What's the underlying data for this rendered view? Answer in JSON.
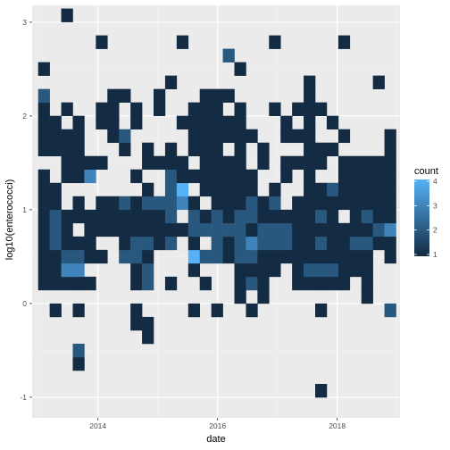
{
  "chart_data": {
    "type": "heatmap",
    "xlabel": "date",
    "ylabel": "log10(enterococci)",
    "x_ticks": [
      "2014",
      "2016",
      "2018"
    ],
    "x_tick_values": [
      2014,
      2016,
      2018
    ],
    "x_range": [
      2012.9,
      2019.05
    ],
    "y_ticks": [
      "-1",
      "0",
      "1",
      "2",
      "3"
    ],
    "y_tick_values": [
      -1,
      0,
      1,
      2,
      3
    ],
    "y_range": [
      -1.22,
      3.18
    ],
    "bin_width_years": 0.193,
    "bin_height": 0.143,
    "x_bin_origin": 2013.0,
    "y_bin_origin": 0.0,
    "grid": true,
    "legend": {
      "title": "count",
      "position": "right",
      "labels": [
        "1",
        "2",
        "3",
        "4"
      ],
      "values": [
        1,
        2,
        3,
        4
      ],
      "color_low": "#132b43",
      "color_high": "#56b1f7"
    },
    "bins": [
      [
        0,
        1,
        1
      ],
      [
        0,
        2,
        1
      ],
      [
        0,
        3,
        1
      ],
      [
        0,
        4,
        1
      ],
      [
        0,
        5,
        1
      ],
      [
        0,
        6,
        1
      ],
      [
        0,
        7,
        1
      ],
      [
        0,
        8,
        1
      ],
      [
        0,
        9,
        1
      ],
      [
        0,
        11,
        1
      ],
      [
        0,
        12,
        1
      ],
      [
        0,
        13,
        1
      ],
      [
        0,
        14,
        1
      ],
      [
        0,
        15,
        2
      ],
      [
        0,
        17,
        1
      ],
      [
        1,
        -1,
        1
      ],
      [
        1,
        1,
        1
      ],
      [
        1,
        2,
        1
      ],
      [
        1,
        3,
        1
      ],
      [
        1,
        4,
        2
      ],
      [
        1,
        5,
        2
      ],
      [
        1,
        6,
        2
      ],
      [
        1,
        7,
        1
      ],
      [
        1,
        8,
        1
      ],
      [
        1,
        11,
        1
      ],
      [
        1,
        12,
        1
      ],
      [
        1,
        13,
        1
      ],
      [
        2,
        1,
        1
      ],
      [
        2,
        2,
        3
      ],
      [
        2,
        3,
        2
      ],
      [
        2,
        4,
        1
      ],
      [
        2,
        5,
        1
      ],
      [
        2,
        6,
        1
      ],
      [
        2,
        9,
        1
      ],
      [
        2,
        10,
        1
      ],
      [
        2,
        11,
        1
      ],
      [
        2,
        12,
        1
      ],
      [
        2,
        14,
        1
      ],
      [
        2,
        21,
        1
      ],
      [
        3,
        -5,
        1
      ],
      [
        3,
        -4,
        2
      ],
      [
        3,
        -1,
        1
      ],
      [
        3,
        1,
        1
      ],
      [
        3,
        2,
        3
      ],
      [
        3,
        3,
        2
      ],
      [
        3,
        4,
        1
      ],
      [
        3,
        6,
        1
      ],
      [
        3,
        7,
        1
      ],
      [
        3,
        9,
        1
      ],
      [
        3,
        10,
        1
      ],
      [
        3,
        11,
        1
      ],
      [
        3,
        12,
        1
      ],
      [
        3,
        13,
        1
      ],
      [
        4,
        1,
        1
      ],
      [
        4,
        3,
        1
      ],
      [
        4,
        4,
        1
      ],
      [
        4,
        5,
        1
      ],
      [
        4,
        6,
        1
      ],
      [
        4,
        9,
        3
      ],
      [
        4,
        10,
        1
      ],
      [
        5,
        3,
        1
      ],
      [
        5,
        5,
        1
      ],
      [
        5,
        6,
        1
      ],
      [
        5,
        7,
        1
      ],
      [
        5,
        10,
        1
      ],
      [
        5,
        13,
        1
      ],
      [
        5,
        14,
        1
      ],
      [
        5,
        19,
        1
      ],
      [
        6,
        5,
        1
      ],
      [
        6,
        6,
        1
      ],
      [
        6,
        7,
        1
      ],
      [
        6,
        12,
        1
      ],
      [
        6,
        13,
        1
      ],
      [
        6,
        14,
        1
      ],
      [
        6,
        15,
        1
      ],
      [
        7,
        3,
        2
      ],
      [
        7,
        4,
        1
      ],
      [
        7,
        5,
        1
      ],
      [
        7,
        6,
        1
      ],
      [
        7,
        7,
        2
      ],
      [
        7,
        11,
        1
      ],
      [
        7,
        12,
        2
      ],
      [
        7,
        15,
        1
      ],
      [
        8,
        -2,
        1
      ],
      [
        8,
        -1,
        1
      ],
      [
        8,
        1,
        1
      ],
      [
        8,
        2,
        1
      ],
      [
        8,
        3,
        2
      ],
      [
        8,
        4,
        2
      ],
      [
        8,
        5,
        1
      ],
      [
        8,
        6,
        1
      ],
      [
        8,
        7,
        1
      ],
      [
        8,
        9,
        1
      ],
      [
        8,
        13,
        1
      ],
      [
        8,
        14,
        1
      ],
      [
        9,
        -3,
        1
      ],
      [
        9,
        -2,
        1
      ],
      [
        9,
        1,
        2
      ],
      [
        9,
        2,
        2
      ],
      [
        9,
        3,
        1
      ],
      [
        9,
        4,
        2
      ],
      [
        9,
        5,
        1
      ],
      [
        9,
        6,
        1
      ],
      [
        9,
        7,
        2
      ],
      [
        9,
        8,
        1
      ],
      [
        9,
        10,
        1
      ],
      [
        9,
        11,
        1
      ],
      [
        10,
        4,
        1
      ],
      [
        10,
        5,
        1
      ],
      [
        10,
        6,
        1
      ],
      [
        10,
        7,
        2
      ],
      [
        10,
        10,
        1
      ],
      [
        10,
        14,
        1
      ],
      [
        10,
        15,
        1
      ],
      [
        11,
        1,
        1
      ],
      [
        11,
        4,
        2
      ],
      [
        11,
        5,
        1
      ],
      [
        11,
        6,
        2
      ],
      [
        11,
        7,
        2
      ],
      [
        11,
        8,
        2
      ],
      [
        11,
        9,
        2
      ],
      [
        11,
        10,
        1
      ],
      [
        11,
        11,
        1
      ],
      [
        11,
        16,
        1
      ],
      [
        12,
        5,
        1
      ],
      [
        12,
        7,
        3
      ],
      [
        12,
        8,
        4
      ],
      [
        12,
        9,
        1
      ],
      [
        12,
        10,
        1
      ],
      [
        12,
        13,
        1
      ],
      [
        12,
        19,
        1
      ],
      [
        13,
        -1,
        1
      ],
      [
        13,
        2,
        1
      ],
      [
        13,
        3,
        4
      ],
      [
        13,
        4,
        1
      ],
      [
        13,
        5,
        2
      ],
      [
        13,
        6,
        2
      ],
      [
        13,
        7,
        1
      ],
      [
        13,
        9,
        1
      ],
      [
        13,
        11,
        1
      ],
      [
        13,
        12,
        1
      ],
      [
        13,
        13,
        1
      ],
      [
        13,
        14,
        1
      ],
      [
        14,
        1,
        1
      ],
      [
        14,
        3,
        2
      ],
      [
        14,
        5,
        2
      ],
      [
        14,
        6,
        1
      ],
      [
        14,
        8,
        1
      ],
      [
        14,
        9,
        1
      ],
      [
        14,
        10,
        1
      ],
      [
        14,
        11,
        1
      ],
      [
        14,
        12,
        1
      ],
      [
        14,
        13,
        1
      ],
      [
        14,
        14,
        1
      ],
      [
        14,
        15,
        1
      ],
      [
        15,
        -1,
        1
      ],
      [
        15,
        3,
        2
      ],
      [
        15,
        4,
        2
      ],
      [
        15,
        5,
        2
      ],
      [
        15,
        6,
        2
      ],
      [
        15,
        7,
        1
      ],
      [
        15,
        8,
        1
      ],
      [
        15,
        9,
        1
      ],
      [
        15,
        10,
        1
      ],
      [
        15,
        11,
        1
      ],
      [
        15,
        12,
        1
      ],
      [
        15,
        13,
        1
      ],
      [
        15,
        14,
        1
      ],
      [
        15,
        15,
        1
      ],
      [
        16,
        3,
        1
      ],
      [
        16,
        4,
        1
      ],
      [
        16,
        5,
        2
      ],
      [
        16,
        6,
        1
      ],
      [
        16,
        7,
        1
      ],
      [
        16,
        8,
        1
      ],
      [
        16,
        9,
        1
      ],
      [
        16,
        10,
        1
      ],
      [
        16,
        12,
        1
      ],
      [
        16,
        13,
        1
      ],
      [
        16,
        15,
        1
      ],
      [
        16,
        18,
        2
      ],
      [
        17,
        0,
        1
      ],
      [
        17,
        1,
        1
      ],
      [
        17,
        2,
        1
      ],
      [
        17,
        3,
        2
      ],
      [
        17,
        4,
        2
      ],
      [
        17,
        5,
        2
      ],
      [
        17,
        6,
        2
      ],
      [
        17,
        7,
        1
      ],
      [
        17,
        8,
        1
      ],
      [
        17,
        9,
        1
      ],
      [
        17,
        10,
        1
      ],
      [
        17,
        11,
        1
      ],
      [
        17,
        12,
        1
      ],
      [
        17,
        13,
        1
      ],
      [
        17,
        14,
        1
      ],
      [
        17,
        17,
        1
      ],
      [
        18,
        -1,
        1
      ],
      [
        18,
        1,
        2
      ],
      [
        18,
        2,
        1
      ],
      [
        18,
        3,
        2
      ],
      [
        18,
        4,
        3
      ],
      [
        18,
        5,
        1
      ],
      [
        18,
        6,
        2
      ],
      [
        18,
        7,
        2
      ],
      [
        18,
        8,
        1
      ],
      [
        18,
        9,
        1
      ],
      [
        18,
        12,
        1
      ],
      [
        19,
        0,
        1
      ],
      [
        19,
        1,
        1
      ],
      [
        19,
        2,
        1
      ],
      [
        19,
        3,
        1
      ],
      [
        19,
        4,
        2
      ],
      [
        19,
        5,
        2
      ],
      [
        19,
        6,
        1
      ],
      [
        19,
        7,
        1
      ],
      [
        19,
        10,
        1
      ],
      [
        19,
        11,
        1
      ],
      [
        20,
        2,
        1
      ],
      [
        20,
        3,
        1
      ],
      [
        20,
        4,
        2
      ],
      [
        20,
        5,
        2
      ],
      [
        20,
        6,
        1
      ],
      [
        20,
        7,
        2
      ],
      [
        20,
        8,
        1
      ],
      [
        20,
        14,
        1
      ],
      [
        20,
        19,
        1
      ],
      [
        21,
        3,
        1
      ],
      [
        21,
        4,
        2
      ],
      [
        21,
        5,
        2
      ],
      [
        21,
        6,
        1
      ],
      [
        21,
        9,
        1
      ],
      [
        21,
        10,
        1
      ],
      [
        21,
        12,
        1
      ],
      [
        21,
        13,
        1
      ],
      [
        22,
        1,
        1
      ],
      [
        22,
        2,
        1
      ],
      [
        22,
        3,
        1
      ],
      [
        22,
        4,
        1
      ],
      [
        22,
        5,
        1
      ],
      [
        22,
        6,
        1
      ],
      [
        22,
        7,
        1
      ],
      [
        22,
        10,
        1
      ],
      [
        22,
        12,
        1
      ],
      [
        22,
        14,
        1
      ],
      [
        23,
        1,
        1
      ],
      [
        23,
        2,
        2
      ],
      [
        23,
        3,
        1
      ],
      [
        23,
        4,
        1
      ],
      [
        23,
        5,
        1
      ],
      [
        23,
        6,
        1
      ],
      [
        23,
        7,
        1
      ],
      [
        23,
        8,
        1
      ],
      [
        23,
        9,
        1
      ],
      [
        23,
        10,
        1
      ],
      [
        23,
        11,
        1
      ],
      [
        23,
        12,
        1
      ],
      [
        23,
        13,
        1
      ],
      [
        23,
        14,
        1
      ],
      [
        23,
        15,
        1
      ],
      [
        23,
        16,
        1
      ],
      [
        24,
        -1,
        1
      ],
      [
        24,
        -7,
        1
      ],
      [
        24,
        1,
        1
      ],
      [
        24,
        2,
        2
      ],
      [
        24,
        3,
        1
      ],
      [
        24,
        4,
        2
      ],
      [
        24,
        5,
        1
      ],
      [
        24,
        6,
        2
      ],
      [
        24,
        7,
        1
      ],
      [
        24,
        8,
        1
      ],
      [
        24,
        10,
        1
      ],
      [
        24,
        11,
        1
      ],
      [
        24,
        14,
        1
      ],
      [
        25,
        1,
        1
      ],
      [
        25,
        2,
        2
      ],
      [
        25,
        3,
        1
      ],
      [
        25,
        4,
        1
      ],
      [
        25,
        5,
        1
      ],
      [
        25,
        6,
        1
      ],
      [
        25,
        7,
        1
      ],
      [
        25,
        8,
        2
      ],
      [
        25,
        11,
        1
      ],
      [
        25,
        13,
        1
      ],
      [
        26,
        1,
        1
      ],
      [
        26,
        2,
        1
      ],
      [
        26,
        3,
        1
      ],
      [
        26,
        4,
        1
      ],
      [
        26,
        5,
        1
      ],
      [
        26,
        7,
        1
      ],
      [
        26,
        8,
        1
      ],
      [
        26,
        9,
        1
      ],
      [
        26,
        10,
        1
      ],
      [
        26,
        12,
        1
      ],
      [
        26,
        19,
        1
      ],
      [
        27,
        2,
        1
      ],
      [
        27,
        3,
        1
      ],
      [
        27,
        4,
        2
      ],
      [
        27,
        5,
        1
      ],
      [
        27,
        6,
        1
      ],
      [
        27,
        7,
        1
      ],
      [
        27,
        8,
        1
      ],
      [
        27,
        9,
        1
      ],
      [
        27,
        10,
        1
      ],
      [
        28,
        0,
        1
      ],
      [
        28,
        1,
        1
      ],
      [
        28,
        2,
        1
      ],
      [
        28,
        3,
        1
      ],
      [
        28,
        4,
        2
      ],
      [
        28,
        5,
        1
      ],
      [
        28,
        6,
        2
      ],
      [
        28,
        7,
        1
      ],
      [
        28,
        8,
        1
      ],
      [
        28,
        9,
        1
      ],
      [
        28,
        10,
        1
      ],
      [
        29,
        4,
        1
      ],
      [
        29,
        5,
        2
      ],
      [
        29,
        6,
        1
      ],
      [
        29,
        7,
        1
      ],
      [
        29,
        8,
        1
      ],
      [
        29,
        9,
        1
      ],
      [
        29,
        10,
        1
      ],
      [
        29,
        16,
        1
      ],
      [
        30,
        -1,
        2
      ],
      [
        30,
        3,
        1
      ],
      [
        30,
        4,
        1
      ],
      [
        30,
        5,
        3
      ],
      [
        30,
        6,
        1
      ],
      [
        30,
        7,
        1
      ],
      [
        30,
        8,
        1
      ],
      [
        30,
        9,
        1
      ],
      [
        30,
        10,
        1
      ],
      [
        30,
        11,
        1
      ],
      [
        30,
        12,
        1
      ]
    ]
  }
}
